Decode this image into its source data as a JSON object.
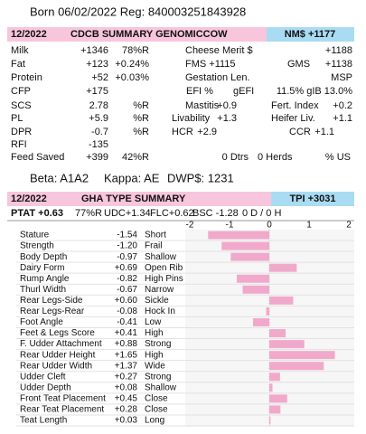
{
  "born": "Born 06/02/2022 Reg: 840003251843928",
  "cdcb": {
    "date": "12/2022",
    "title": "CDCB SUMMARY GENOMICCOW",
    "index": "NM$ +1177",
    "rows": [
      [
        "Milk",
        "+1346",
        "78%R",
        "Cheese Merit $",
        "+1188"
      ],
      [
        "Fat",
        "+123",
        "+0.24%",
        "FMS +1115",
        "GMS",
        "+1138"
      ],
      [
        "Protein",
        "+52",
        "+0.03%",
        "Gestation Len.",
        "MSP"
      ],
      [
        "CFP",
        "+175",
        "EFI %",
        "gEFI",
        "11.5% gIB 13.0%"
      ],
      [
        "SCS",
        "2.78",
        "%R",
        "Mastitis",
        "+0.9",
        "Fert. Index",
        "+0.2"
      ],
      [
        "PL",
        "+5.9",
        "%R",
        "Livability",
        "+1.3",
        "Heifer Liv.",
        "+1.1"
      ],
      [
        "DPR",
        "-0.7",
        "%R",
        "HCR",
        "+2.9",
        "CCR",
        "+1.1"
      ],
      [
        "RFI",
        "-135"
      ],
      [
        "Feed Saved",
        "+399",
        "42%R",
        "0 Dtrs",
        "0 Herds",
        "% US"
      ]
    ]
  },
  "genetics": [
    "Beta: A1A2",
    "Kappa: AE",
    "DWP$: 1231"
  ],
  "type": {
    "date": "12/2022",
    "title": "GHA TYPE SUMMARY",
    "index": "TPI +3031",
    "ptat": [
      "PTAT +0.63",
      "77%R",
      "UDC+1.34",
      "FLC+0.62",
      "BSC -1.28",
      "0 D / 0 H"
    ],
    "scale": [
      -2,
      -1,
      0,
      1,
      2
    ],
    "traits": [
      {
        "name": "Stature",
        "value": -1.54,
        "desc": "Short"
      },
      {
        "name": "Strength",
        "value": -1.2,
        "label": "-1.20",
        "desc": "Frail"
      },
      {
        "name": "Body Depth",
        "value": -0.97,
        "desc": "Shallow"
      },
      {
        "name": "Dairy Form",
        "value": 0.69,
        "label": "+0.69",
        "desc": "Open Rib"
      },
      {
        "name": "Rump Angle",
        "value": -0.82,
        "desc": "High Pins"
      },
      {
        "name": "Thurl Width",
        "value": -0.67,
        "desc": "Narrow"
      },
      {
        "name": "Rear Legs-Side",
        "value": 0.6,
        "label": "+0.60",
        "desc": "Sickle"
      },
      {
        "name": "Rear Legs-Rear",
        "value": -0.08,
        "desc": "Hock In"
      },
      {
        "name": "Foot Angle",
        "value": -0.41,
        "desc": "Low"
      },
      {
        "name": "Feet & Legs Score",
        "value": 0.41,
        "label": "+0.41",
        "desc": "High"
      },
      {
        "name": "F. Udder Attachment",
        "value": 0.88,
        "label": "+0.88",
        "desc": "Strong"
      },
      {
        "name": "Rear Udder Height",
        "value": 1.65,
        "label": "+1.65",
        "desc": "High"
      },
      {
        "name": "Rear Udder Width",
        "value": 1.37,
        "label": "+1.37",
        "desc": "Wide"
      },
      {
        "name": "Udder Cleft",
        "value": 0.27,
        "label": "+0.27",
        "desc": "Strong"
      },
      {
        "name": "Udder Depth",
        "value": 0.08,
        "label": "+0.08",
        "desc": "Shallow"
      },
      {
        "name": "Front Teat Placement",
        "value": 0.45,
        "label": "+0.45",
        "desc": "Close"
      },
      {
        "name": "Rear Teat Placement",
        "value": 0.28,
        "label": "+0.28",
        "desc": "Close"
      },
      {
        "name": "Teat Length",
        "value": 0.03,
        "label": "+0.03",
        "desc": "Long"
      }
    ]
  }
}
